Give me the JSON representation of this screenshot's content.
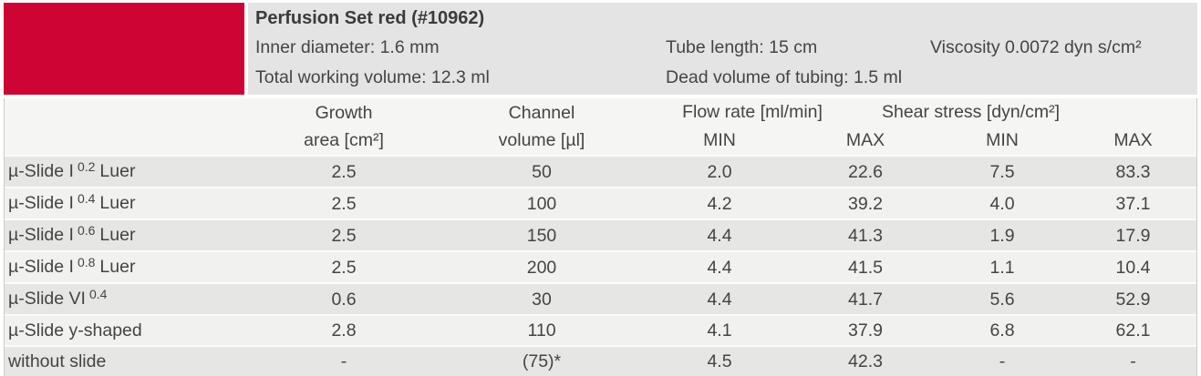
{
  "header": {
    "title": "Perfusion Set red (#10962)",
    "inner_diameter": "Inner diameter: 1.6 mm",
    "tube_length": "Tube length: 15 cm",
    "viscosity": "Viscosity 0.0072 dyn s/cm²",
    "total_working_volume": "Total working volume: 12.3 ml",
    "dead_volume": "Dead volume of tubing: 1.5 ml"
  },
  "table": {
    "columns": {
      "growth_line1": "Growth",
      "growth_line2": "area [cm²]",
      "channel_line1": "Channel",
      "channel_line2": "volume [µl]",
      "flow_rate_group": "Flow rate [ml/min]",
      "shear_stress_group": "Shear stress [dyn/cm²]",
      "min": "MIN",
      "max": "MAX"
    },
    "rows": [
      {
        "label": {
          "prefix": "µ-Slide I",
          "sup": "0.2",
          "suffix": "Luer"
        },
        "values": [
          "2.5",
          "50",
          "2.0",
          "22.6",
          "7.5",
          "83.3"
        ]
      },
      {
        "label": {
          "prefix": "µ-Slide I",
          "sup": "0.4",
          "suffix": "Luer"
        },
        "values": [
          "2.5",
          "100",
          "4.2",
          "39.2",
          "4.0",
          "37.1"
        ]
      },
      {
        "label": {
          "prefix": "µ-Slide I",
          "sup": "0.6",
          "suffix": "Luer"
        },
        "values": [
          "2.5",
          "150",
          "4.4",
          "41.3",
          "1.9",
          "17.9"
        ]
      },
      {
        "label": {
          "prefix": "µ-Slide I",
          "sup": "0.8",
          "suffix": "Luer"
        },
        "values": [
          "2.5",
          "200",
          "4.4",
          "41.5",
          "1.1",
          "10.4"
        ]
      },
      {
        "label": {
          "prefix": "µ-Slide VI",
          "sup": "0.4",
          "suffix": ""
        },
        "values": [
          "0.6",
          "30",
          "4.4",
          "41.7",
          "5.6",
          "52.9"
        ]
      },
      {
        "label": {
          "prefix": "µ-Slide y-shaped",
          "sup": "",
          "suffix": ""
        },
        "values": [
          "2.8",
          "110",
          "4.1",
          "37.9",
          "6.8",
          "62.1"
        ]
      },
      {
        "label": {
          "prefix": "without slide",
          "sup": "",
          "suffix": ""
        },
        "values": [
          "-",
          "(75)*",
          "4.5",
          "42.3",
          "-",
          "-"
        ]
      }
    ]
  },
  "colors": {
    "accent_red": "#ce0434",
    "panel_gray": "#e4e4e4",
    "table_header_bg": "#f5f5f3",
    "row_dark": "#e6e6e4",
    "row_light": "#f1f1ef",
    "border_dark": "#4a4a4a"
  }
}
